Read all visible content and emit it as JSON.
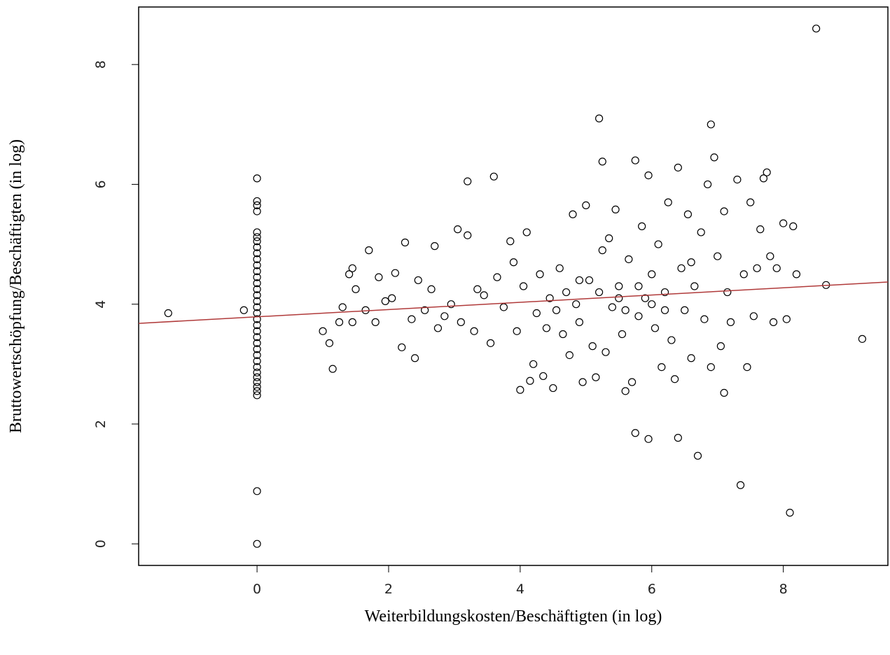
{
  "chart_data": {
    "type": "scatter",
    "x_label": "Weiterbildungskosten/Beschäftigten (in log)",
    "y_label": "Bruttowertschöpfung/Beschäftigten (in log)",
    "xlim": [
      -1.8,
      9.59
    ],
    "ylim": [
      -0.36,
      8.96
    ],
    "xticks": [
      0,
      2,
      4,
      6,
      8
    ],
    "yticks": [
      0,
      2,
      4,
      6,
      8
    ],
    "series": [
      {
        "type": "scatter",
        "color": "#000000",
        "x": [
          0,
          0,
          0,
          0,
          0,
          0,
          0,
          0,
          0,
          0,
          0,
          0,
          0,
          0,
          0,
          0,
          0,
          0,
          0,
          0,
          0,
          0,
          0,
          0,
          0,
          0,
          0,
          0,
          0,
          0,
          0,
          0,
          0,
          0,
          0,
          0,
          -1.35,
          -0.2,
          1.0,
          1.1,
          1.15,
          1.25,
          1.3,
          1.4,
          1.45,
          1.45,
          1.5,
          1.65,
          1.7,
          1.8,
          1.85,
          1.95,
          2.05,
          2.1,
          2.2,
          2.25,
          2.35,
          2.4,
          2.45,
          2.55,
          2.65,
          2.7,
          2.75,
          2.85,
          2.95,
          3.05,
          3.1,
          3.2,
          3.2,
          3.3,
          3.35,
          3.45,
          3.55,
          3.6,
          3.65,
          3.75,
          3.85,
          3.9,
          3.95,
          4.0,
          4.05,
          4.1,
          4.15,
          4.2,
          4.25,
          4.3,
          4.35,
          4.4,
          4.45,
          4.5,
          4.55,
          4.6,
          4.65,
          4.7,
          4.75,
          4.8,
          4.85,
          4.9,
          4.95,
          5.0,
          5.05,
          5.1,
          5.15,
          5.2,
          5.25,
          5.25,
          5.3,
          5.35,
          5.4,
          5.45,
          5.5,
          5.55,
          5.6,
          5.65,
          5.7,
          5.75,
          5.75,
          5.8,
          5.85,
          5.9,
          5.95,
          5.95,
          6.0,
          6.05,
          6.1,
          6.15,
          6.2,
          6.25,
          6.3,
          6.35,
          6.4,
          6.4,
          6.45,
          6.5,
          6.55,
          6.6,
          6.65,
          6.7,
          6.75,
          6.8,
          6.85,
          6.9,
          6.9,
          6.95,
          7.0,
          7.05,
          7.1,
          7.1,
          7.15,
          7.2,
          7.3,
          7.35,
          7.4,
          7.45,
          7.5,
          7.55,
          7.6,
          7.65,
          7.7,
          7.75,
          7.8,
          7.85,
          7.9,
          8.0,
          8.05,
          8.1,
          8.15,
          8.2,
          8.5,
          8.65,
          9.2,
          5.5,
          5.8,
          6.2,
          6.0,
          5.2,
          4.9,
          6.6,
          5.6
        ],
        "y": [
          0,
          0.88,
          2.48,
          2.55,
          2.62,
          2.7,
          2.78,
          2.86,
          2.95,
          3.05,
          3.15,
          3.25,
          3.35,
          3.45,
          3.55,
          3.65,
          3.75,
          3.85,
          3.95,
          4.05,
          4.15,
          4.25,
          4.35,
          4.45,
          4.55,
          4.65,
          4.75,
          4.85,
          4.95,
          5.05,
          5.12,
          5.2,
          5.55,
          5.65,
          5.72,
          6.1,
          3.85,
          3.9,
          3.55,
          3.35,
          2.92,
          3.7,
          3.95,
          4.5,
          4.6,
          3.7,
          4.25,
          3.9,
          4.9,
          3.7,
          4.45,
          4.05,
          4.1,
          4.52,
          3.28,
          5.03,
          3.75,
          3.1,
          4.4,
          3.9,
          4.25,
          4.97,
          3.6,
          3.8,
          4.0,
          5.25,
          3.7,
          5.15,
          6.05,
          3.55,
          4.25,
          4.15,
          3.35,
          6.13,
          4.45,
          3.95,
          5.05,
          4.7,
          3.55,
          2.57,
          4.3,
          5.2,
          2.72,
          3.0,
          3.85,
          4.5,
          2.8,
          3.6,
          4.1,
          2.6,
          3.9,
          4.6,
          3.5,
          4.2,
          3.15,
          5.5,
          4.0,
          3.7,
          2.7,
          5.65,
          4.4,
          3.3,
          2.78,
          7.1,
          6.38,
          4.9,
          3.2,
          5.1,
          3.95,
          5.58,
          4.3,
          3.5,
          2.55,
          4.75,
          2.7,
          6.4,
          1.85,
          3.8,
          5.3,
          4.1,
          1.75,
          6.15,
          4.5,
          3.6,
          5.0,
          2.95,
          4.2,
          5.7,
          3.4,
          2.75,
          6.28,
          1.77,
          4.6,
          3.9,
          5.5,
          3.1,
          4.3,
          1.47,
          5.2,
          3.75,
          6.0,
          2.95,
          7.0,
          6.45,
          4.8,
          3.3,
          2.52,
          5.55,
          4.2,
          3.7,
          6.08,
          0.98,
          4.5,
          2.95,
          5.7,
          3.8,
          4.6,
          5.25,
          6.1,
          6.2,
          4.8,
          3.7,
          4.6,
          5.35,
          3.75,
          0.52,
          5.3,
          4.5,
          8.6,
          4.32,
          3.42,
          4.1,
          4.3,
          3.9,
          4.0,
          4.2,
          4.4,
          4.7,
          3.9
        ]
      },
      {
        "type": "line",
        "color": "#b03a3a",
        "x": [
          -1.8,
          9.59
        ],
        "y": [
          3.68,
          4.37
        ]
      }
    ]
  }
}
